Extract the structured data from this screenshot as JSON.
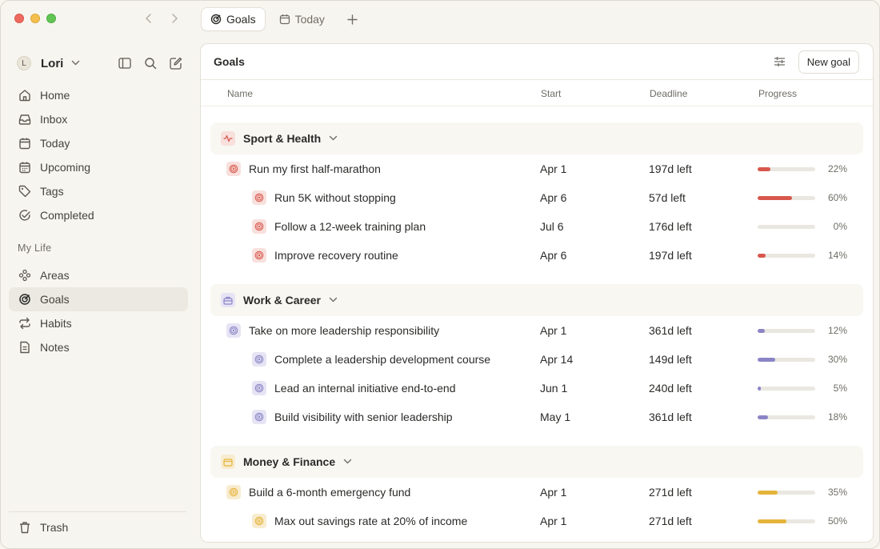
{
  "window": {
    "app_title": ""
  },
  "tabs": [
    {
      "label": "Goals",
      "icon": "goal-icon",
      "active": true
    },
    {
      "label": "Today",
      "icon": "calendar-icon",
      "active": false
    }
  ],
  "user": {
    "initial": "L",
    "name": "Lori"
  },
  "nav": {
    "items": [
      {
        "label": "Home",
        "icon": "home-icon"
      },
      {
        "label": "Inbox",
        "icon": "inbox-icon"
      },
      {
        "label": "Today",
        "icon": "calendar-icon"
      },
      {
        "label": "Upcoming",
        "icon": "calendar-grid-icon"
      },
      {
        "label": "Tags",
        "icon": "tag-icon"
      },
      {
        "label": "Completed",
        "icon": "check-circle-icon"
      }
    ],
    "section_label": "My Life",
    "life_items": [
      {
        "label": "Areas",
        "icon": "areas-icon"
      },
      {
        "label": "Goals",
        "icon": "goal-icon",
        "active": true
      },
      {
        "label": "Habits",
        "icon": "repeat-icon"
      },
      {
        "label": "Notes",
        "icon": "note-icon"
      }
    ],
    "trash_label": "Trash"
  },
  "main": {
    "title": "Goals",
    "new_goal_label": "New goal",
    "columns": {
      "name": "Name",
      "start": "Start",
      "deadline": "Deadline",
      "progress": "Progress"
    }
  },
  "colors": {
    "red": "#d8574c",
    "purple": "#8a84c6",
    "yellow": "#e5b43a"
  },
  "groups": [
    {
      "name": "Sport & Health",
      "icon": "activity-icon",
      "color": "#d8574c",
      "goals": [
        {
          "name": "Run my first half-marathon",
          "start": "Apr 1",
          "deadline": "197d left",
          "progress": 22,
          "progress_label": "22%",
          "level": 0
        },
        {
          "name": "Run 5K without stopping",
          "start": "Apr 6",
          "deadline": "57d left",
          "progress": 60,
          "progress_label": "60%",
          "level": 1
        },
        {
          "name": "Follow a 12-week training plan",
          "start": "Jul 6",
          "deadline": "176d left",
          "progress": 0,
          "progress_label": "0%",
          "level": 1
        },
        {
          "name": "Improve recovery routine",
          "start": "Apr 6",
          "deadline": "197d left",
          "progress": 14,
          "progress_label": "14%",
          "level": 1
        }
      ]
    },
    {
      "name": "Work & Career",
      "icon": "briefcase-icon",
      "color": "#8a84c6",
      "goals": [
        {
          "name": "Take on more leadership responsibility",
          "start": "Apr 1",
          "deadline": "361d left",
          "progress": 12,
          "progress_label": "12%",
          "level": 0
        },
        {
          "name": "Complete a leadership development course",
          "start": "Apr 14",
          "deadline": "149d left",
          "progress": 30,
          "progress_label": "30%",
          "level": 1
        },
        {
          "name": "Lead an internal initiative end-to-end",
          "start": "Jun 1",
          "deadline": "240d left",
          "progress": 5,
          "progress_label": "5%",
          "level": 1
        },
        {
          "name": "Build visibility with senior leadership",
          "start": "May 1",
          "deadline": "361d left",
          "progress": 18,
          "progress_label": "18%",
          "level": 1
        }
      ]
    },
    {
      "name": "Money & Finance",
      "icon": "wallet-icon",
      "color": "#e5b43a",
      "goals": [
        {
          "name": "Build a 6-month emergency fund",
          "start": "Apr 1",
          "deadline": "271d left",
          "progress": 35,
          "progress_label": "35%",
          "level": 0
        },
        {
          "name": "Max out savings rate at 20% of income",
          "start": "Apr 1",
          "deadline": "271d left",
          "progress": 50,
          "progress_label": "50%",
          "level": 1
        }
      ]
    }
  ]
}
